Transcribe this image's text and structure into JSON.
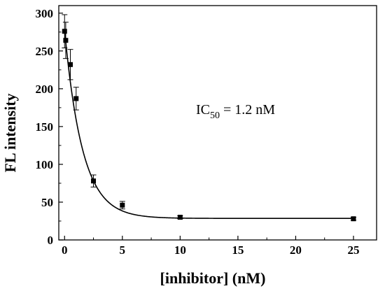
{
  "chart_data": {
    "type": "scatter",
    "title": "",
    "xlabel": "[inhibitor] (nM)",
    "ylabel": "FL intensity",
    "xlim": [
      -0.5,
      27
    ],
    "ylim": [
      0,
      310
    ],
    "x_ticks": [
      0,
      5,
      10,
      15,
      20,
      25
    ],
    "y_ticks": [
      0,
      50,
      100,
      150,
      200,
      250,
      300
    ],
    "x_tick_labels": [
      "0",
      "5",
      "10",
      "15",
      "20",
      "25"
    ],
    "y_tick_labels": [
      "0",
      "50",
      "100",
      "150",
      "200",
      "250",
      "300"
    ],
    "grid": false,
    "legend": "none",
    "series": [
      {
        "x": [
          0,
          0.1,
          0.5,
          1,
          2.5,
          5,
          10,
          25
        ],
        "y": [
          276,
          264,
          232,
          187,
          78,
          46,
          30,
          28
        ],
        "error": [
          22,
          24,
          20,
          15,
          8,
          5,
          2,
          2
        ]
      }
    ],
    "fit": {
      "type": "exponential-decay",
      "y0": 28.5,
      "A": 249,
      "t": 1.55
    },
    "annotation": {
      "text_main": "IC",
      "text_sub": "50",
      "text_rest": " = 1.2 nM"
    }
  }
}
